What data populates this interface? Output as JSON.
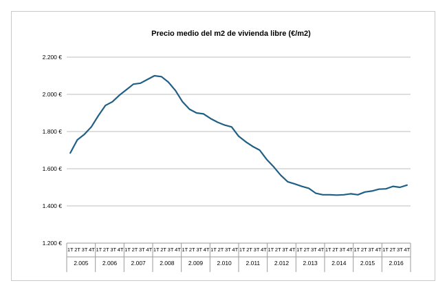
{
  "chart_data": {
    "type": "line",
    "title": "Precio medio del m2 de vivienda libre (€/m2)",
    "ylim": [
      1200,
      2200
    ],
    "ytick_labels": [
      "1.200 €",
      "1.400 €",
      "1.600 €",
      "1.800 €",
      "2.000 €",
      "2.200 €"
    ],
    "grid": true,
    "quarter_labels": [
      "1T",
      "2T",
      "3T",
      "4T"
    ],
    "years": [
      "2.005",
      "2.006",
      "2.007",
      "2.008",
      "2.009",
      "2.010",
      "2.011",
      "2.012",
      "2.013",
      "2.014",
      "2.015",
      "2.016"
    ],
    "series": [
      {
        "values": [
          1685,
          1755,
          1785,
          1825,
          1885,
          1940,
          1960,
          1995,
          2025,
          2055,
          2060,
          2080,
          2100,
          2095,
          2065,
          2020,
          1960,
          1920,
          1900,
          1895,
          1870,
          1850,
          1835,
          1825,
          1775,
          1745,
          1720,
          1700,
          1650,
          1610,
          1565,
          1530,
          1518,
          1505,
          1495,
          1468,
          1460,
          1460,
          1458,
          1460,
          1465,
          1460,
          1475,
          1480,
          1490,
          1492,
          1505,
          1500,
          1512
        ]
      }
    ]
  }
}
